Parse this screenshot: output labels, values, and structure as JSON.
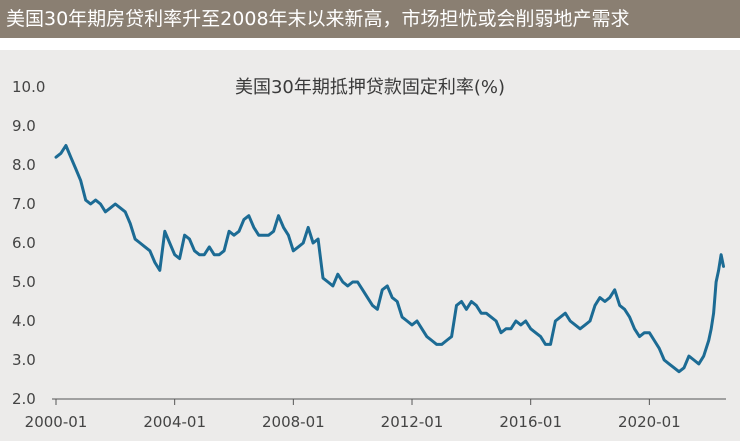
{
  "banner": {
    "text": "美国30年期房贷利率升至2008年末以来新高，市场担忧或会削弱地产需求"
  },
  "colors": {
    "banner_bg": "#8a7f72",
    "panel_bg": "#ecebea",
    "line": "#1c6b94"
  },
  "chart_data": {
    "type": "line",
    "title": "美国30年期抵押贷款固定利率(%)",
    "xlabel": "",
    "ylabel": "",
    "x_ticks": [
      "2000-01",
      "2004-01",
      "2008-01",
      "2012-01",
      "2016-01",
      "2020-01"
    ],
    "y_ticks": [
      "2.0",
      "3.0",
      "4.0",
      "5.0",
      "6.0",
      "7.0",
      "8.0",
      "9.0",
      "10.0"
    ],
    "xlim": [
      "2000-01",
      "2022-08"
    ],
    "ylim": [
      2.0,
      10.0
    ],
    "grid": false,
    "series": [
      {
        "name": "",
        "x": [
          "2000-01",
          "2000-03",
          "2000-05",
          "2000-07",
          "2000-09",
          "2000-11",
          "2001-01",
          "2001-03",
          "2001-05",
          "2001-07",
          "2001-09",
          "2001-11",
          "2002-01",
          "2002-03",
          "2002-05",
          "2002-07",
          "2002-09",
          "2002-11",
          "2003-01",
          "2003-03",
          "2003-05",
          "2003-07",
          "2003-09",
          "2003-11",
          "2004-01",
          "2004-03",
          "2004-05",
          "2004-07",
          "2004-09",
          "2004-11",
          "2005-01",
          "2005-03",
          "2005-05",
          "2005-07",
          "2005-09",
          "2005-11",
          "2006-01",
          "2006-03",
          "2006-05",
          "2006-07",
          "2006-09",
          "2006-11",
          "2007-01",
          "2007-03",
          "2007-05",
          "2007-07",
          "2007-09",
          "2007-11",
          "2008-01",
          "2008-03",
          "2008-05",
          "2008-07",
          "2008-09",
          "2008-11",
          "2009-01",
          "2009-03",
          "2009-05",
          "2009-07",
          "2009-09",
          "2009-11",
          "2010-01",
          "2010-03",
          "2010-05",
          "2010-07",
          "2010-09",
          "2010-11",
          "2011-01",
          "2011-03",
          "2011-05",
          "2011-07",
          "2011-09",
          "2011-11",
          "2012-01",
          "2012-03",
          "2012-05",
          "2012-07",
          "2012-09",
          "2012-11",
          "2013-01",
          "2013-03",
          "2013-05",
          "2013-07",
          "2013-09",
          "2013-11",
          "2014-01",
          "2014-03",
          "2014-05",
          "2014-07",
          "2014-09",
          "2014-11",
          "2015-01",
          "2015-03",
          "2015-05",
          "2015-07",
          "2015-09",
          "2015-11",
          "2016-01",
          "2016-03",
          "2016-05",
          "2016-07",
          "2016-09",
          "2016-11",
          "2017-01",
          "2017-03",
          "2017-05",
          "2017-07",
          "2017-09",
          "2017-11",
          "2018-01",
          "2018-03",
          "2018-05",
          "2018-07",
          "2018-09",
          "2018-11",
          "2019-01",
          "2019-03",
          "2019-05",
          "2019-07",
          "2019-09",
          "2019-11",
          "2020-01",
          "2020-03",
          "2020-05",
          "2020-07",
          "2020-09",
          "2020-11",
          "2021-01",
          "2021-03",
          "2021-05",
          "2021-07",
          "2021-09",
          "2021-11",
          "2022-01",
          "2022-02",
          "2022-03",
          "2022-04",
          "2022-05",
          "2022-06",
          "2022-07"
        ],
        "values": [
          8.2,
          8.3,
          8.5,
          8.2,
          7.9,
          7.6,
          7.1,
          7.0,
          7.1,
          7.0,
          6.8,
          6.9,
          7.0,
          6.9,
          6.8,
          6.5,
          6.1,
          6.0,
          5.9,
          5.8,
          5.5,
          5.3,
          6.3,
          6.0,
          5.7,
          5.6,
          6.2,
          6.1,
          5.8,
          5.7,
          5.7,
          5.9,
          5.7,
          5.7,
          5.8,
          6.3,
          6.2,
          6.3,
          6.6,
          6.7,
          6.4,
          6.2,
          6.2,
          6.2,
          6.3,
          6.7,
          6.4,
          6.2,
          5.8,
          5.9,
          6.0,
          6.4,
          6.0,
          6.1,
          5.1,
          5.0,
          4.9,
          5.2,
          5.0,
          4.9,
          5.0,
          5.0,
          4.8,
          4.6,
          4.4,
          4.3,
          4.8,
          4.9,
          4.6,
          4.5,
          4.1,
          4.0,
          3.9,
          4.0,
          3.8,
          3.6,
          3.5,
          3.4,
          3.4,
          3.5,
          3.6,
          4.4,
          4.5,
          4.3,
          4.5,
          4.4,
          4.2,
          4.2,
          4.1,
          4.0,
          3.7,
          3.8,
          3.8,
          4.0,
          3.9,
          4.0,
          3.8,
          3.7,
          3.6,
          3.4,
          3.4,
          4.0,
          4.1,
          4.2,
          4.0,
          3.9,
          3.8,
          3.9,
          4.0,
          4.4,
          4.6,
          4.5,
          4.6,
          4.8,
          4.4,
          4.3,
          4.1,
          3.8,
          3.6,
          3.7,
          3.7,
          3.5,
          3.3,
          3.0,
          2.9,
          2.8,
          2.7,
          2.8,
          3.1,
          3.0,
          2.9,
          3.1,
          3.5,
          3.8,
          4.2,
          5.0,
          5.3,
          5.7,
          5.4
        ]
      }
    ]
  }
}
